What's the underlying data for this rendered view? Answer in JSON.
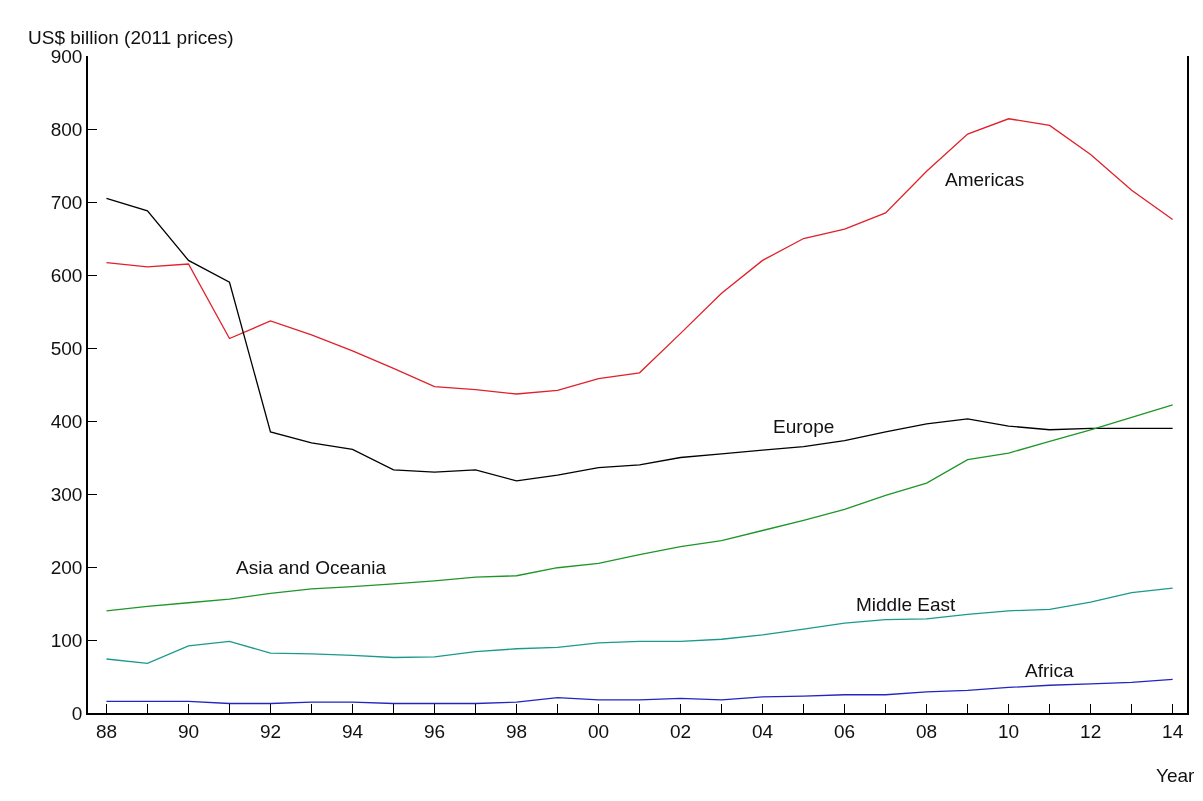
{
  "chart_data": {
    "type": "line",
    "ylabel": "US$ billion (2011 prices)",
    "xlabel": "Year",
    "x": [
      1988,
      1989,
      1990,
      1991,
      1992,
      1993,
      1994,
      1995,
      1996,
      1997,
      1998,
      1999,
      2000,
      2001,
      2002,
      2003,
      2004,
      2005,
      2006,
      2007,
      2008,
      2009,
      2010,
      2011,
      2012,
      2013,
      2014
    ],
    "series": [
      {
        "name": "Americas",
        "color": "#e0202a",
        "values": [
          617,
          611,
          615,
          513,
          537,
          518,
          496,
          472,
          447,
          443,
          437,
          442,
          458,
          466,
          520,
          575,
          620,
          650,
          663,
          685,
          742,
          793,
          814,
          805,
          765,
          716,
          676
        ]
      },
      {
        "name": "Europe",
        "color": "#000000",
        "values": [
          705,
          688,
          620,
          590,
          385,
          370,
          361,
          333,
          330,
          333,
          318,
          326,
          336,
          340,
          350,
          355,
          360,
          365,
          373,
          385,
          396,
          403,
          393,
          388,
          390,
          390,
          390
        ]
      },
      {
        "name": "Asia and Oceania",
        "color": "#1e9628",
        "values": [
          140,
          146,
          151,
          156,
          164,
          170,
          173,
          177,
          181,
          186,
          188,
          199,
          205,
          217,
          228,
          236,
          250,
          264,
          279,
          298,
          315,
          347,
          356,
          372,
          388,
          405,
          422
        ]
      },
      {
        "name": "Middle East",
        "color": "#1a9a8c",
        "values": [
          74,
          68,
          92,
          98,
          82,
          81,
          79,
          76,
          77,
          84,
          88,
          90,
          96,
          98,
          98,
          101,
          107,
          115,
          123,
          128,
          129,
          135,
          140,
          142,
          152,
          165,
          171
        ]
      },
      {
        "name": "Africa",
        "color": "#2424c0",
        "values": [
          16,
          16,
          16,
          13,
          13,
          15,
          15,
          13,
          13,
          13,
          15,
          21,
          18,
          18,
          20,
          18,
          22,
          23,
          25,
          25,
          29,
          31,
          35,
          38,
          40,
          42,
          46
        ]
      }
    ],
    "xlim": [
      1987.55,
      2014.35
    ],
    "xticks": [
      {
        "value": 1988,
        "label": "88"
      },
      {
        "value": 1989,
        "label": null
      },
      {
        "value": 1990,
        "label": "90"
      },
      {
        "value": 1991,
        "label": null
      },
      {
        "value": 1992,
        "label": "92"
      },
      {
        "value": 1993,
        "label": null
      },
      {
        "value": 1994,
        "label": "94"
      },
      {
        "value": 1995,
        "label": null
      },
      {
        "value": 1996,
        "label": "96"
      },
      {
        "value": 1997,
        "label": null
      },
      {
        "value": 1998,
        "label": "98"
      },
      {
        "value": 1999,
        "label": null
      },
      {
        "value": 2000,
        "label": "00"
      },
      {
        "value": 2001,
        "label": null
      },
      {
        "value": 2002,
        "label": "02"
      },
      {
        "value": 2003,
        "label": null
      },
      {
        "value": 2004,
        "label": "04"
      },
      {
        "value": 2005,
        "label": null
      },
      {
        "value": 2006,
        "label": "06"
      },
      {
        "value": 2007,
        "label": null
      },
      {
        "value": 2008,
        "label": "08"
      },
      {
        "value": 2009,
        "label": null
      },
      {
        "value": 2010,
        "label": "10"
      },
      {
        "value": 2011,
        "label": null
      },
      {
        "value": 2012,
        "label": "12"
      },
      {
        "value": 2013,
        "label": null
      },
      {
        "value": 2014,
        "label": "14"
      }
    ],
    "ylim": [
      0,
      900
    ],
    "yticks": [
      0,
      100,
      200,
      300,
      400,
      500,
      600,
      700,
      800,
      900
    ],
    "legend": false,
    "marker": "none",
    "line_style": "solid"
  }
}
